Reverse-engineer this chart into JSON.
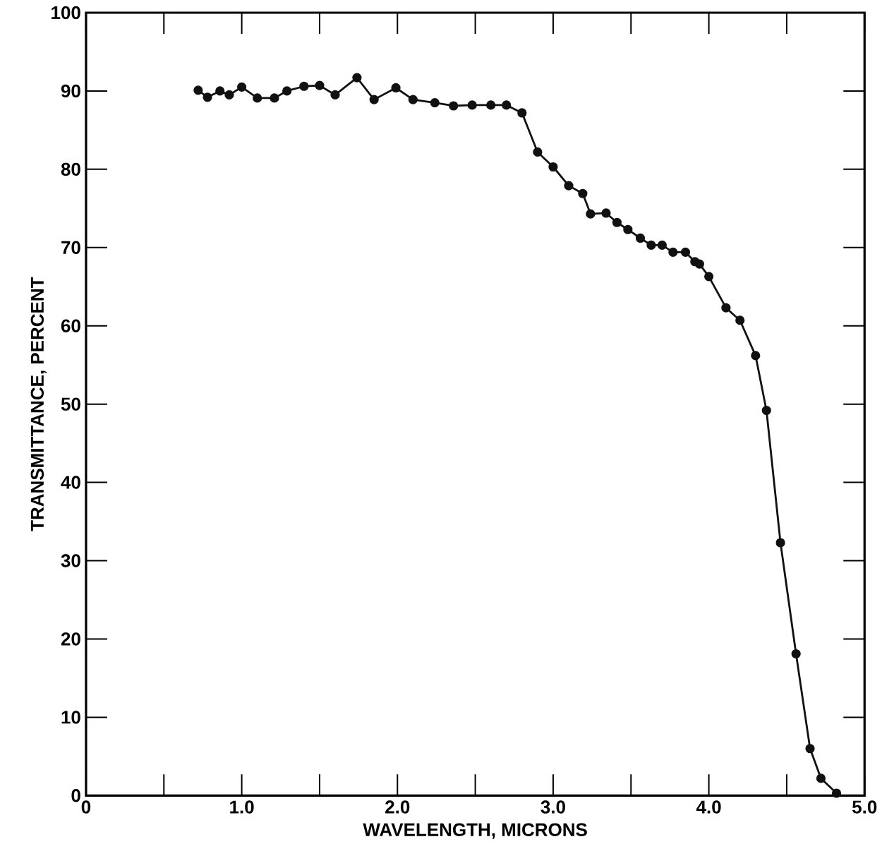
{
  "chart_data": {
    "type": "line",
    "xlabel": "WAVELENGTH, MICRONS",
    "ylabel": "TRANSMITTANCE, PERCENT",
    "x": [
      0.72,
      0.78,
      0.86,
      0.92,
      1.0,
      1.1,
      1.21,
      1.29,
      1.4,
      1.5,
      1.6,
      1.74,
      1.85,
      1.99,
      2.1,
      2.24,
      2.36,
      2.48,
      2.6,
      2.7,
      2.8,
      2.9,
      3.0,
      3.1,
      3.19,
      3.24,
      3.34,
      3.41,
      3.48,
      3.56,
      3.63,
      3.7,
      3.77,
      3.85,
      3.91,
      3.94,
      4.0,
      4.11,
      4.2,
      4.3,
      4.37,
      4.46,
      4.56,
      4.65,
      4.72,
      4.82
    ],
    "series": [
      {
        "color": "#111111",
        "values": [
          90.1,
          89.2,
          90.0,
          89.5,
          90.5,
          89.1,
          89.1,
          90.0,
          90.6,
          90.7,
          89.5,
          91.7,
          88.9,
          90.4,
          88.9,
          88.5,
          88.1,
          88.2,
          88.2,
          88.2,
          87.2,
          82.2,
          80.3,
          77.9,
          76.9,
          74.3,
          74.4,
          73.2,
          72.3,
          71.2,
          70.3,
          70.3,
          69.4,
          69.4,
          68.2,
          67.9,
          66.3,
          62.3,
          60.7,
          56.2,
          49.2,
          32.3,
          18.1,
          6.0,
          2.2,
          0.3
        ]
      }
    ],
    "marker": "circle",
    "line_style": "solid",
    "grid": false,
    "xlim": [
      0,
      5
    ],
    "ylim": [
      0,
      100
    ],
    "xticks": [
      0,
      {
        "value": 0.5,
        "label": null
      },
      {
        "value": 1,
        "label": "1.0"
      },
      {
        "value": 1.5,
        "label": null
      },
      {
        "value": 2,
        "label": "2.0"
      },
      {
        "value": 2.5,
        "label": null
      },
      {
        "value": 3,
        "label": "3.0"
      },
      {
        "value": 3.5,
        "label": null
      },
      {
        "value": 4,
        "label": "4.0"
      },
      {
        "value": 4.5,
        "label": null
      },
      {
        "value": 5,
        "label": "5.0"
      }
    ],
    "yticks": [
      0,
      10,
      20,
      30,
      40,
      50,
      60,
      70,
      80,
      90,
      100
    ]
  }
}
